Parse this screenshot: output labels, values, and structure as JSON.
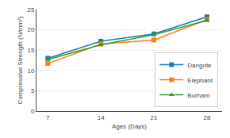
{
  "chart_data": {
    "type": "line",
    "x": [
      7,
      14,
      21,
      28
    ],
    "series": [
      {
        "name": "Dangote",
        "values": [
          13.0,
          17.2,
          19.0,
          23.2
        ],
        "marker": "square"
      },
      {
        "name": "Elephant",
        "values": [
          11.7,
          16.5,
          17.5,
          22.5
        ],
        "marker": "square"
      },
      {
        "name": "Burham",
        "values": [
          12.7,
          16.3,
          18.8,
          22.3
        ],
        "marker": "triangle"
      }
    ],
    "xlabel": "Ages (Days)",
    "ylabel": "Compressive Strength (N/mm²)",
    "xlim": [
      5.5,
      30
    ],
    "xticks": [
      7,
      14,
      21,
      28
    ],
    "ylim": [
      0,
      25
    ],
    "yticks": [
      0,
      5,
      10,
      15,
      20,
      25
    ],
    "grid": "y",
    "legend": "lower right"
  }
}
